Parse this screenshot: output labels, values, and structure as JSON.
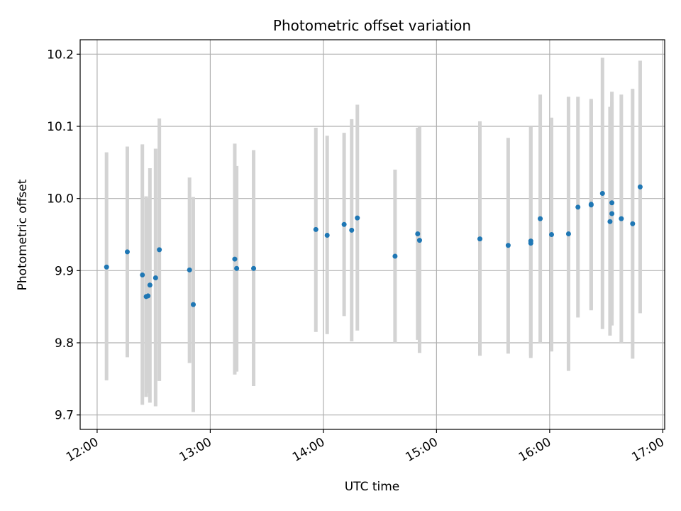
{
  "chart_data": {
    "type": "scatter",
    "title": "Photometric offset variation",
    "xlabel": "UTC time",
    "ylabel": "Photometric offset",
    "x_ticks": [
      "12:00",
      "13:00",
      "14:00",
      "15:00",
      "16:00",
      "17:00"
    ],
    "y_ticks": [
      "9.7",
      "9.8",
      "9.9",
      "10.0",
      "10.1",
      "10.2"
    ],
    "xlim": [
      "11:51",
      "17:01"
    ],
    "ylim": [
      9.68,
      10.22
    ],
    "grid": true,
    "point_color": "#1f77b4",
    "errorbar_color": "#d3d3d3",
    "points": [
      {
        "x": "12:05",
        "y": 9.905,
        "lo": 9.748,
        "hi": 10.064
      },
      {
        "x": "12:16",
        "y": 9.926,
        "lo": 9.78,
        "hi": 10.072
      },
      {
        "x": "12:24",
        "y": 9.894,
        "lo": 9.714,
        "hi": 10.075
      },
      {
        "x": "12:26",
        "y": 9.864,
        "lo": 9.725,
        "hi": 10.003
      },
      {
        "x": "12:27",
        "y": 9.865,
        "lo": 9.73,
        "hi": 10.0
      },
      {
        "x": "12:28",
        "y": 9.88,
        "lo": 9.717,
        "hi": 10.042
      },
      {
        "x": "12:31",
        "y": 9.89,
        "lo": 9.712,
        "hi": 10.069
      },
      {
        "x": "12:33",
        "y": 9.929,
        "lo": 9.747,
        "hi": 10.111
      },
      {
        "x": "12:49",
        "y": 9.901,
        "lo": 9.772,
        "hi": 10.029
      },
      {
        "x": "12:51",
        "y": 9.853,
        "lo": 9.704,
        "hi": 10.002
      },
      {
        "x": "13:13",
        "y": 9.916,
        "lo": 9.756,
        "hi": 10.076
      },
      {
        "x": "13:14",
        "y": 9.903,
        "lo": 9.76,
        "hi": 10.045
      },
      {
        "x": "13:23",
        "y": 9.903,
        "lo": 9.74,
        "hi": 10.067
      },
      {
        "x": "13:56",
        "y": 9.957,
        "lo": 9.815,
        "hi": 10.098
      },
      {
        "x": "14:02",
        "y": 9.949,
        "lo": 9.812,
        "hi": 10.087
      },
      {
        "x": "14:11",
        "y": 9.964,
        "lo": 9.837,
        "hi": 10.091
      },
      {
        "x": "14:15",
        "y": 9.956,
        "lo": 9.802,
        "hi": 10.11
      },
      {
        "x": "14:18",
        "y": 9.973,
        "lo": 9.817,
        "hi": 10.13
      },
      {
        "x": "14:38",
        "y": 9.92,
        "lo": 9.8,
        "hi": 10.04
      },
      {
        "x": "14:50",
        "y": 9.951,
        "lo": 9.804,
        "hi": 10.098
      },
      {
        "x": "14:51",
        "y": 9.942,
        "lo": 9.786,
        "hi": 10.099
      },
      {
        "x": "15:23",
        "y": 9.944,
        "lo": 9.782,
        "hi": 10.107
      },
      {
        "x": "15:38",
        "y": 9.935,
        "lo": 9.785,
        "hi": 10.084
      },
      {
        "x": "15:50",
        "y": 9.938,
        "lo": 9.779,
        "hi": 10.099
      },
      {
        "x": "15:50",
        "y": 9.941,
        "lo": 9.782,
        "hi": 10.099
      },
      {
        "x": "15:55",
        "y": 9.972,
        "lo": 9.8,
        "hi": 10.144
      },
      {
        "x": "16:01",
        "y": 9.95,
        "lo": 9.788,
        "hi": 10.112
      },
      {
        "x": "16:10",
        "y": 9.951,
        "lo": 9.761,
        "hi": 10.141
      },
      {
        "x": "16:15",
        "y": 9.988,
        "lo": 9.835,
        "hi": 10.141
      },
      {
        "x": "16:22",
        "y": 9.992,
        "lo": 9.845,
        "hi": 10.138
      },
      {
        "x": "16:22",
        "y": 9.991,
        "lo": 9.846,
        "hi": 10.136
      },
      {
        "x": "16:28",
        "y": 10.007,
        "lo": 9.819,
        "hi": 10.195
      },
      {
        "x": "16:32",
        "y": 9.968,
        "lo": 9.81,
        "hi": 10.127
      },
      {
        "x": "16:33",
        "y": 9.979,
        "lo": 9.824,
        "hi": 10.134
      },
      {
        "x": "16:33",
        "y": 9.994,
        "lo": 9.838,
        "hi": 10.148
      },
      {
        "x": "16:38",
        "y": 9.972,
        "lo": 9.8,
        "hi": 10.144
      },
      {
        "x": "16:44",
        "y": 9.965,
        "lo": 9.778,
        "hi": 10.152
      },
      {
        "x": "16:48",
        "y": 10.016,
        "lo": 9.841,
        "hi": 10.191
      }
    ]
  }
}
